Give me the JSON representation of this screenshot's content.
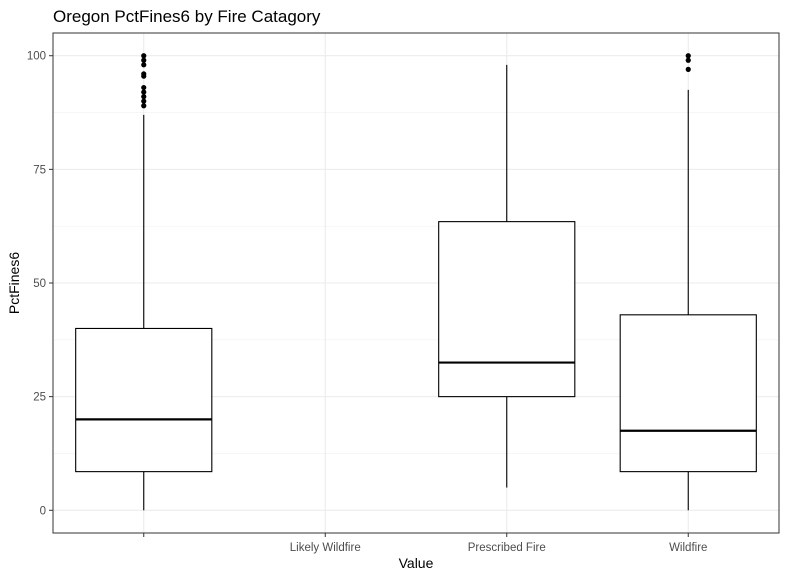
{
  "chart_data": {
    "type": "box",
    "title": "Oregon PctFines6 by Fire Catagory",
    "xlabel": "Value",
    "ylabel": "PctFines6",
    "ylim": [
      -5,
      105
    ],
    "yticks": [
      0,
      25,
      50,
      75,
      100
    ],
    "grid": true,
    "legend": "none",
    "categories": [
      "",
      "Likely Wildfire",
      "Prescribed Fire",
      "Wildfire"
    ],
    "boxes": [
      {
        "category": "",
        "whisker_low": 0,
        "q1": 8.5,
        "median": 20,
        "q3": 40,
        "whisker_high": 87,
        "outliers": [
          89,
          90,
          91,
          92,
          93,
          95.5,
          96,
          98,
          99,
          100
        ]
      },
      {
        "category": "Likely Wildfire",
        "empty": true
      },
      {
        "category": "Prescribed Fire",
        "whisker_low": 5,
        "q1": 25,
        "median": 32.5,
        "q3": 63.5,
        "whisker_high": 98,
        "outliers": []
      },
      {
        "category": "Wildfire",
        "whisker_low": 0,
        "q1": 8.5,
        "median": 17.5,
        "q3": 43,
        "whisker_high": 92.5,
        "outliers": [
          97,
          99,
          100
        ]
      }
    ]
  }
}
